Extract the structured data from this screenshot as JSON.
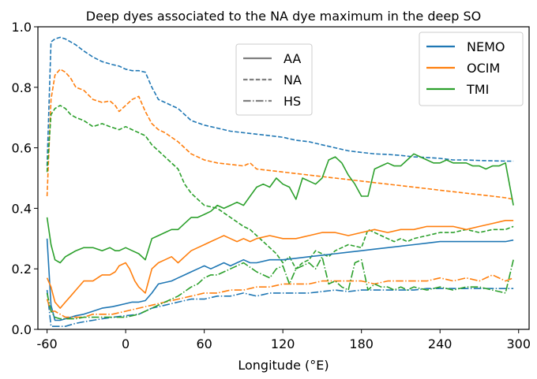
{
  "chart_data": {
    "type": "line",
    "title": "Deep dyes associated to the NA dye maximum in the deep SO",
    "xlabel": "Longitude (°E)",
    "ylabel": "",
    "xlim": [
      -67,
      308
    ],
    "ylim": [
      0.0,
      1.0
    ],
    "x_ticks": [
      -60,
      0,
      60,
      120,
      180,
      240,
      300
    ],
    "x_tick_labels": [
      "-60",
      "0",
      "60",
      "120",
      "180",
      "240",
      "300"
    ],
    "y_ticks": [
      0.0,
      0.2,
      0.4,
      0.6,
      0.8,
      1.0
    ],
    "y_tick_labels": [
      "0.0",
      "0.2",
      "0.4",
      "0.6",
      "0.8",
      "1.0"
    ],
    "grid": false,
    "colors": {
      "NEMO": "#1f77b4",
      "OCIM": "#ff7f0e",
      "TMI": "#2ca02c",
      "style_legend": "#808080"
    },
    "legends": [
      {
        "placement": "top-center",
        "entries": [
          {
            "label": "AA",
            "linestyle": "solid"
          },
          {
            "label": "NA",
            "linestyle": "dashed"
          },
          {
            "label": "HS",
            "linestyle": "dashdot"
          }
        ]
      },
      {
        "placement": "top-right",
        "entries": [
          {
            "label": "NEMO",
            "color": "#1f77b4"
          },
          {
            "label": "OCIM",
            "color": "#ff7f0e"
          },
          {
            "label": "TMI",
            "color": "#2ca02c"
          }
        ]
      }
    ],
    "series": [
      {
        "model": "NEMO",
        "dye": "NA",
        "linestyle": "dashed",
        "color": "#1f77b4",
        "x": [
          -60,
          -57,
          -54,
          -50,
          -46,
          -42,
          -38,
          -32,
          -25,
          -18,
          -10,
          -5,
          0,
          5,
          10,
          15,
          20,
          25,
          30,
          40,
          50,
          60,
          70,
          80,
          90,
          100,
          110,
          120,
          130,
          140,
          150,
          160,
          170,
          180,
          190,
          200,
          210,
          220,
          230,
          240,
          250,
          260,
          270,
          280,
          290,
          296
        ],
        "y": [
          0.54,
          0.95,
          0.96,
          0.965,
          0.96,
          0.95,
          0.94,
          0.92,
          0.9,
          0.885,
          0.875,
          0.87,
          0.86,
          0.855,
          0.855,
          0.85,
          0.8,
          0.76,
          0.75,
          0.73,
          0.69,
          0.675,
          0.665,
          0.655,
          0.65,
          0.645,
          0.64,
          0.635,
          0.625,
          0.62,
          0.61,
          0.6,
          0.59,
          0.585,
          0.58,
          0.578,
          0.575,
          0.57,
          0.568,
          0.565,
          0.56,
          0.56,
          0.558,
          0.557,
          0.556,
          0.556
        ]
      },
      {
        "model": "OCIM",
        "dye": "NA",
        "linestyle": "dashed",
        "color": "#ff7f0e",
        "x": [
          -60,
          -57,
          -54,
          -50,
          -46,
          -42,
          -38,
          -32,
          -25,
          -18,
          -12,
          -8,
          -5,
          0,
          5,
          10,
          15,
          20,
          25,
          30,
          40,
          50,
          60,
          70,
          80,
          90,
          95,
          100,
          110,
          120,
          130,
          140,
          150,
          160,
          170,
          180,
          190,
          200,
          210,
          220,
          230,
          240,
          250,
          260,
          270,
          280,
          290,
          296
        ],
        "y": [
          0.44,
          0.76,
          0.84,
          0.86,
          0.85,
          0.83,
          0.8,
          0.79,
          0.76,
          0.75,
          0.755,
          0.74,
          0.72,
          0.74,
          0.76,
          0.77,
          0.72,
          0.68,
          0.66,
          0.65,
          0.62,
          0.58,
          0.56,
          0.55,
          0.545,
          0.54,
          0.55,
          0.53,
          0.525,
          0.52,
          0.515,
          0.51,
          0.505,
          0.5,
          0.495,
          0.49,
          0.485,
          0.48,
          0.475,
          0.47,
          0.465,
          0.46,
          0.455,
          0.45,
          0.445,
          0.44,
          0.435,
          0.43
        ]
      },
      {
        "model": "TMI",
        "dye": "NA",
        "linestyle": "dashed",
        "color": "#2ca02c",
        "x": [
          -60,
          -57,
          -54,
          -50,
          -46,
          -42,
          -38,
          -32,
          -25,
          -18,
          -12,
          -5,
          0,
          5,
          10,
          15,
          20,
          25,
          30,
          40,
          45,
          50,
          55,
          60,
          70,
          80,
          90,
          95,
          100,
          105,
          110,
          115,
          120,
          125,
          130,
          135,
          140,
          145,
          150,
          155,
          160,
          165,
          170,
          180,
          185,
          190,
          195,
          200,
          205,
          210,
          215,
          220,
          230,
          240,
          250,
          260,
          270,
          280,
          290,
          296
        ],
        "y": [
          0.52,
          0.71,
          0.73,
          0.74,
          0.73,
          0.71,
          0.7,
          0.69,
          0.67,
          0.68,
          0.67,
          0.66,
          0.67,
          0.66,
          0.65,
          0.64,
          0.61,
          0.59,
          0.57,
          0.53,
          0.48,
          0.45,
          0.43,
          0.41,
          0.4,
          0.37,
          0.34,
          0.33,
          0.31,
          0.29,
          0.27,
          0.25,
          0.22,
          0.24,
          0.2,
          0.22,
          0.23,
          0.26,
          0.25,
          0.24,
          0.26,
          0.27,
          0.28,
          0.27,
          0.33,
          0.32,
          0.31,
          0.3,
          0.29,
          0.3,
          0.29,
          0.3,
          0.31,
          0.32,
          0.32,
          0.33,
          0.32,
          0.33,
          0.33,
          0.34
        ]
      },
      {
        "model": "NEMO",
        "dye": "AA",
        "linestyle": "solid",
        "color": "#1f77b4",
        "x": [
          -60,
          -57,
          -54,
          -50,
          -46,
          -42,
          -38,
          -32,
          -25,
          -18,
          -10,
          -5,
          0,
          5,
          10,
          15,
          20,
          25,
          30,
          35,
          40,
          45,
          50,
          55,
          60,
          65,
          70,
          75,
          80,
          85,
          90,
          95,
          100,
          110,
          120,
          130,
          140,
          150,
          160,
          170,
          180,
          190,
          200,
          210,
          220,
          230,
          240,
          250,
          260,
          270,
          280,
          290,
          296
        ],
        "y": [
          0.3,
          0.08,
          0.03,
          0.03,
          0.035,
          0.04,
          0.045,
          0.05,
          0.06,
          0.07,
          0.075,
          0.08,
          0.085,
          0.09,
          0.09,
          0.095,
          0.12,
          0.15,
          0.155,
          0.16,
          0.17,
          0.18,
          0.19,
          0.2,
          0.21,
          0.2,
          0.21,
          0.22,
          0.21,
          0.22,
          0.23,
          0.22,
          0.22,
          0.23,
          0.23,
          0.235,
          0.24,
          0.245,
          0.25,
          0.255,
          0.26,
          0.265,
          0.27,
          0.275,
          0.28,
          0.285,
          0.29,
          0.29,
          0.29,
          0.29,
          0.29,
          0.29,
          0.295
        ]
      },
      {
        "model": "OCIM",
        "dye": "AA",
        "linestyle": "solid",
        "color": "#ff7f0e",
        "x": [
          -60,
          -57,
          -54,
          -50,
          -46,
          -42,
          -38,
          -32,
          -25,
          -18,
          -12,
          -8,
          -5,
          0,
          3,
          7,
          10,
          15,
          20,
          25,
          30,
          35,
          40,
          45,
          50,
          55,
          60,
          65,
          70,
          75,
          80,
          85,
          90,
          95,
          100,
          110,
          120,
          130,
          140,
          150,
          160,
          170,
          180,
          190,
          200,
          210,
          220,
          230,
          240,
          250,
          260,
          270,
          280,
          290,
          296
        ],
        "y": [
          0.17,
          0.14,
          0.09,
          0.07,
          0.09,
          0.11,
          0.13,
          0.16,
          0.16,
          0.18,
          0.18,
          0.19,
          0.21,
          0.22,
          0.2,
          0.16,
          0.14,
          0.12,
          0.2,
          0.22,
          0.23,
          0.24,
          0.22,
          0.24,
          0.26,
          0.27,
          0.28,
          0.29,
          0.3,
          0.31,
          0.3,
          0.29,
          0.3,
          0.29,
          0.3,
          0.31,
          0.3,
          0.3,
          0.31,
          0.32,
          0.32,
          0.31,
          0.32,
          0.33,
          0.32,
          0.33,
          0.33,
          0.34,
          0.34,
          0.34,
          0.33,
          0.34,
          0.35,
          0.36,
          0.36
        ]
      },
      {
        "model": "TMI",
        "dye": "AA",
        "linestyle": "solid",
        "color": "#2ca02c",
        "x": [
          -60,
          -57,
          -54,
          -50,
          -46,
          -42,
          -38,
          -32,
          -25,
          -18,
          -12,
          -8,
          -5,
          0,
          5,
          10,
          15,
          20,
          25,
          30,
          35,
          40,
          45,
          50,
          55,
          60,
          65,
          70,
          75,
          80,
          85,
          90,
          95,
          100,
          105,
          110,
          115,
          120,
          125,
          130,
          135,
          140,
          145,
          150,
          155,
          160,
          165,
          170,
          175,
          180,
          185,
          190,
          195,
          200,
          205,
          210,
          215,
          220,
          225,
          230,
          235,
          240,
          245,
          250,
          255,
          260,
          265,
          270,
          275,
          280,
          285,
          290,
          296
        ],
        "y": [
          0.37,
          0.28,
          0.23,
          0.22,
          0.24,
          0.25,
          0.26,
          0.27,
          0.27,
          0.26,
          0.27,
          0.26,
          0.26,
          0.27,
          0.26,
          0.25,
          0.23,
          0.3,
          0.31,
          0.32,
          0.33,
          0.33,
          0.35,
          0.37,
          0.37,
          0.38,
          0.39,
          0.41,
          0.4,
          0.41,
          0.42,
          0.41,
          0.44,
          0.47,
          0.48,
          0.47,
          0.5,
          0.48,
          0.47,
          0.43,
          0.5,
          0.49,
          0.48,
          0.5,
          0.56,
          0.57,
          0.55,
          0.51,
          0.48,
          0.44,
          0.44,
          0.53,
          0.54,
          0.55,
          0.54,
          0.54,
          0.56,
          0.58,
          0.57,
          0.56,
          0.55,
          0.55,
          0.56,
          0.55,
          0.55,
          0.55,
          0.54,
          0.54,
          0.53,
          0.54,
          0.54,
          0.55,
          0.41
        ]
      },
      {
        "model": "NEMO",
        "dye": "HS",
        "linestyle": "dashdot",
        "color": "#1f77b4",
        "x": [
          -60,
          -57,
          -54,
          -50,
          -46,
          -42,
          -38,
          -32,
          -25,
          -18,
          -10,
          0,
          10,
          20,
          30,
          40,
          50,
          60,
          70,
          80,
          90,
          100,
          110,
          120,
          130,
          140,
          150,
          160,
          170,
          180,
          190,
          200,
          210,
          220,
          230,
          240,
          250,
          260,
          270,
          280,
          290,
          296
        ],
        "y": [
          0.13,
          0.01,
          0.01,
          0.01,
          0.01,
          0.015,
          0.02,
          0.025,
          0.03,
          0.035,
          0.04,
          0.045,
          0.05,
          0.07,
          0.08,
          0.09,
          0.1,
          0.1,
          0.11,
          0.11,
          0.12,
          0.11,
          0.12,
          0.12,
          0.12,
          0.12,
          0.125,
          0.13,
          0.125,
          0.13,
          0.13,
          0.13,
          0.13,
          0.13,
          0.135,
          0.135,
          0.135,
          0.135,
          0.135,
          0.135,
          0.135,
          0.135
        ]
      },
      {
        "model": "OCIM",
        "dye": "HS",
        "linestyle": "dashdot",
        "color": "#ff7f0e",
        "x": [
          -60,
          -57,
          -54,
          -50,
          -46,
          -42,
          -38,
          -32,
          -25,
          -18,
          -10,
          0,
          10,
          20,
          30,
          40,
          50,
          60,
          70,
          80,
          90,
          100,
          110,
          120,
          130,
          140,
          150,
          160,
          170,
          180,
          190,
          200,
          210,
          220,
          230,
          240,
          250,
          260,
          270,
          280,
          290,
          296
        ],
        "y": [
          0.1,
          0.06,
          0.06,
          0.05,
          0.04,
          0.04,
          0.04,
          0.04,
          0.05,
          0.05,
          0.05,
          0.06,
          0.07,
          0.08,
          0.09,
          0.1,
          0.11,
          0.12,
          0.12,
          0.13,
          0.13,
          0.14,
          0.14,
          0.15,
          0.15,
          0.15,
          0.16,
          0.16,
          0.16,
          0.16,
          0.15,
          0.16,
          0.16,
          0.16,
          0.16,
          0.17,
          0.16,
          0.17,
          0.16,
          0.18,
          0.16,
          0.17
        ]
      },
      {
        "model": "TMI",
        "dye": "HS",
        "linestyle": "dashdot",
        "color": "#2ca02c",
        "x": [
          -60,
          -57,
          -54,
          -50,
          -46,
          -42,
          -38,
          -32,
          -25,
          -18,
          -10,
          0,
          10,
          20,
          30,
          40,
          50,
          55,
          60,
          65,
          70,
          75,
          80,
          90,
          100,
          110,
          115,
          120,
          125,
          130,
          135,
          140,
          145,
          150,
          155,
          160,
          165,
          170,
          175,
          180,
          185,
          190,
          195,
          200,
          205,
          210,
          215,
          220,
          230,
          240,
          250,
          260,
          270,
          280,
          290,
          296
        ],
        "y": [
          0.12,
          0.06,
          0.04,
          0.035,
          0.035,
          0.035,
          0.035,
          0.04,
          0.04,
          0.04,
          0.04,
          0.04,
          0.05,
          0.07,
          0.09,
          0.11,
          0.14,
          0.15,
          0.17,
          0.18,
          0.18,
          0.19,
          0.2,
          0.22,
          0.19,
          0.17,
          0.2,
          0.21,
          0.15,
          0.2,
          0.21,
          0.22,
          0.2,
          0.24,
          0.15,
          0.16,
          0.14,
          0.13,
          0.22,
          0.23,
          0.13,
          0.15,
          0.14,
          0.14,
          0.13,
          0.14,
          0.13,
          0.14,
          0.13,
          0.14,
          0.13,
          0.14,
          0.14,
          0.13,
          0.12,
          0.23
        ]
      }
    ]
  }
}
